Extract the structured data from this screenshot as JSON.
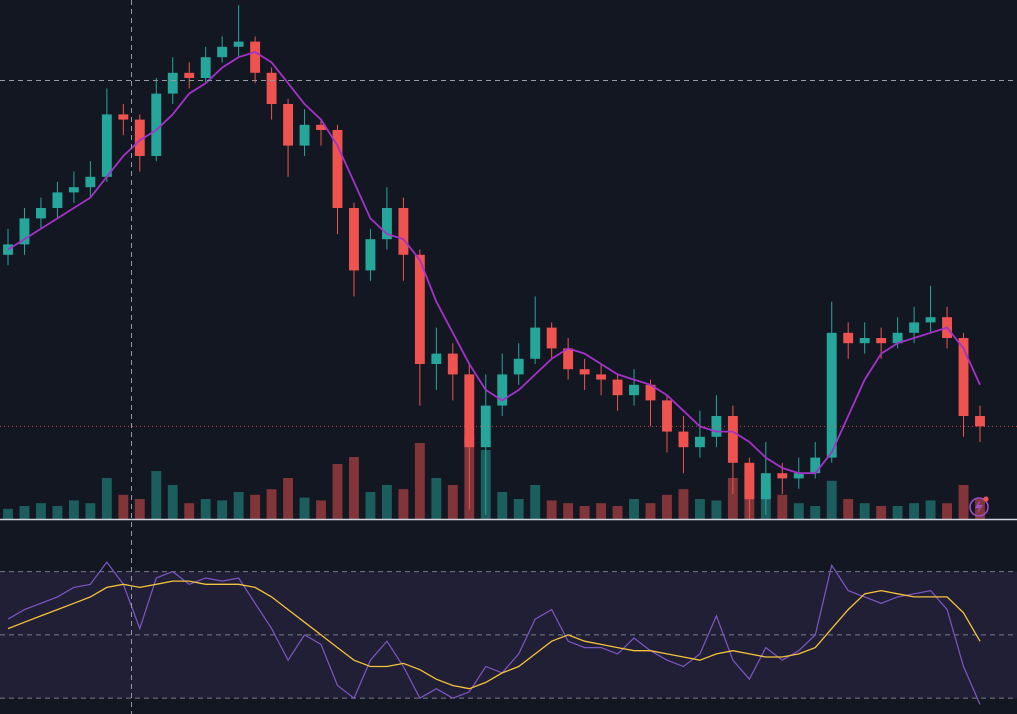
{
  "chart_data": {
    "type": "candlestick",
    "open": [
      51,
      53,
      58,
      60,
      63,
      64,
      66,
      78,
      77,
      70,
      82,
      86,
      85,
      89,
      91,
      92,
      86,
      80,
      72,
      76,
      75,
      60,
      48,
      54,
      60,
      51,
      30,
      32,
      28,
      14,
      22,
      28,
      31,
      37,
      33,
      29,
      28,
      27,
      24,
      26,
      23,
      17,
      14,
      16,
      20,
      11,
      4,
      9,
      8,
      9,
      12,
      36,
      34,
      35,
      34,
      36,
      38,
      39,
      35,
      20
    ],
    "high": [
      56,
      60,
      62,
      65,
      67,
      69,
      83,
      80,
      78,
      85,
      89,
      88,
      91,
      93,
      99,
      93,
      87,
      81,
      79,
      77,
      76,
      61,
      56,
      64,
      62,
      52,
      37,
      34,
      30,
      28,
      32,
      34,
      43,
      38,
      35,
      31,
      30,
      28,
      29,
      27,
      24,
      20,
      21,
      24,
      22,
      12,
      15,
      11,
      12,
      15,
      42,
      38,
      38,
      37,
      39,
      41,
      45,
      41,
      36,
      22
    ],
    "low": [
      49,
      51,
      56,
      58,
      61,
      62,
      65,
      74,
      67,
      69,
      80,
      83,
      84,
      88,
      89,
      84,
      77,
      66,
      70,
      72,
      55,
      43,
      46,
      52,
      46,
      22,
      25,
      23,
      2,
      1,
      20,
      26,
      30,
      31,
      27,
      25,
      24,
      21,
      22,
      18,
      13,
      9,
      12,
      14,
      5,
      0,
      1,
      5,
      6,
      8,
      11,
      31,
      32,
      31,
      33,
      34,
      36,
      33,
      16,
      15
    ],
    "close": [
      53,
      58,
      60,
      63,
      64,
      66,
      78,
      77,
      70,
      82,
      86,
      85,
      89,
      91,
      92,
      86,
      80,
      72,
      76,
      75,
      60,
      48,
      54,
      60,
      51,
      30,
      32,
      28,
      14,
      22,
      28,
      31,
      37,
      33,
      29,
      28,
      27,
      24,
      26,
      23,
      17,
      14,
      16,
      20,
      11,
      4,
      9,
      8,
      9,
      12,
      36,
      34,
      35,
      34,
      36,
      38,
      39,
      35,
      20,
      18
    ],
    "ma": [
      52,
      54,
      56,
      58,
      60,
      62,
      66,
      70,
      73,
      75,
      78,
      82,
      84,
      87,
      89,
      90,
      88,
      84,
      80,
      77,
      72,
      65,
      58,
      55,
      54,
      50,
      42,
      36,
      30,
      25,
      23,
      25,
      28,
      31,
      33,
      32,
      30,
      28,
      27,
      26,
      24,
      21,
      18,
      17,
      17,
      15,
      12,
      10,
      9,
      9,
      13,
      20,
      27,
      32,
      34,
      35,
      36,
      37,
      33,
      26
    ],
    "volume": [
      8,
      10,
      12,
      10,
      14,
      12,
      30,
      18,
      15,
      35,
      25,
      12,
      15,
      14,
      20,
      18,
      22,
      30,
      16,
      14,
      40,
      45,
      20,
      25,
      22,
      55,
      30,
      25,
      60,
      50,
      20,
      15,
      25,
      14,
      12,
      10,
      12,
      10,
      15,
      12,
      18,
      22,
      15,
      14,
      30,
      35,
      25,
      18,
      12,
      10,
      28,
      15,
      12,
      10,
      10,
      12,
      14,
      12,
      25,
      15
    ],
    "ylim": [
      0,
      100
    ],
    "vlim": [
      0,
      100
    ],
    "up_color": "#26a69a",
    "down_color": "#ef5350",
    "ma_color": "#a333c8",
    "rsi": {
      "values": [
        55,
        58,
        60,
        62,
        65,
        66,
        73,
        66,
        52,
        68,
        70,
        66,
        68,
        67,
        68,
        60,
        52,
        42,
        50,
        47,
        34,
        30,
        42,
        48,
        40,
        30,
        33,
        30,
        32,
        40,
        38,
        44,
        55,
        58,
        48,
        46,
        46,
        44,
        49,
        45,
        42,
        40,
        44,
        56,
        42,
        36,
        46,
        42,
        45,
        50,
        72,
        64,
        62,
        60,
        62,
        63,
        64,
        58,
        40,
        28
      ],
      "ma": [
        52,
        54,
        56,
        58,
        60,
        62,
        65,
        66,
        65,
        66,
        67,
        67,
        66,
        66,
        66,
        65,
        62,
        58,
        54,
        50,
        46,
        42,
        40,
        40,
        41,
        39,
        36,
        34,
        33,
        35,
        38,
        40,
        44,
        48,
        50,
        48,
        47,
        46,
        45,
        45,
        44,
        43,
        42,
        44,
        45,
        44,
        43,
        43,
        44,
        46,
        52,
        58,
        63,
        64,
        63,
        62,
        62,
        62,
        57,
        48
      ],
      "ylim": [
        25,
        86
      ],
      "levels": [
        70,
        50,
        30
      ],
      "color": "#7e57c2",
      "ma_color": "#f5c23b"
    }
  }
}
